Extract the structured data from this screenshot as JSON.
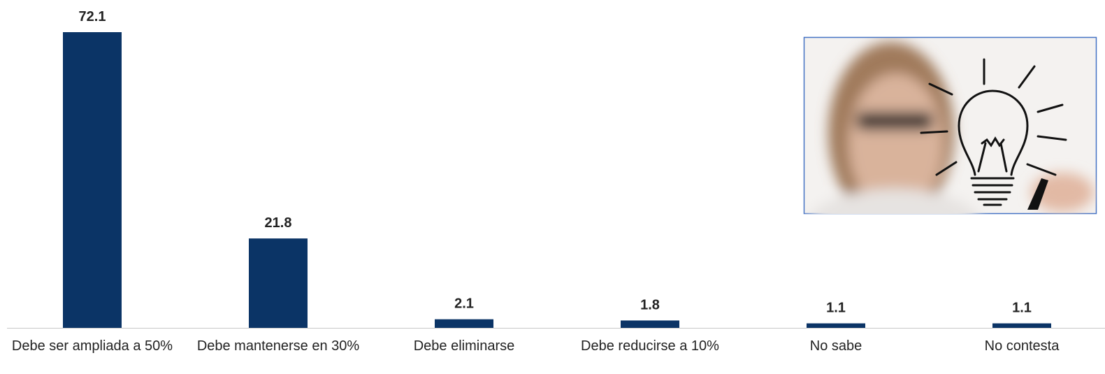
{
  "chart_data": {
    "type": "bar",
    "categories": [
      "Debe ser ampliada a 50%",
      "Debe mantenerse en 30%",
      "Debe eliminarse",
      "Debe reducirse a 10%",
      "No sabe",
      "No contesta"
    ],
    "values": [
      72.1,
      21.8,
      2.1,
      1.8,
      1.1,
      1.1
    ],
    "color": "#0b3466"
  }
}
